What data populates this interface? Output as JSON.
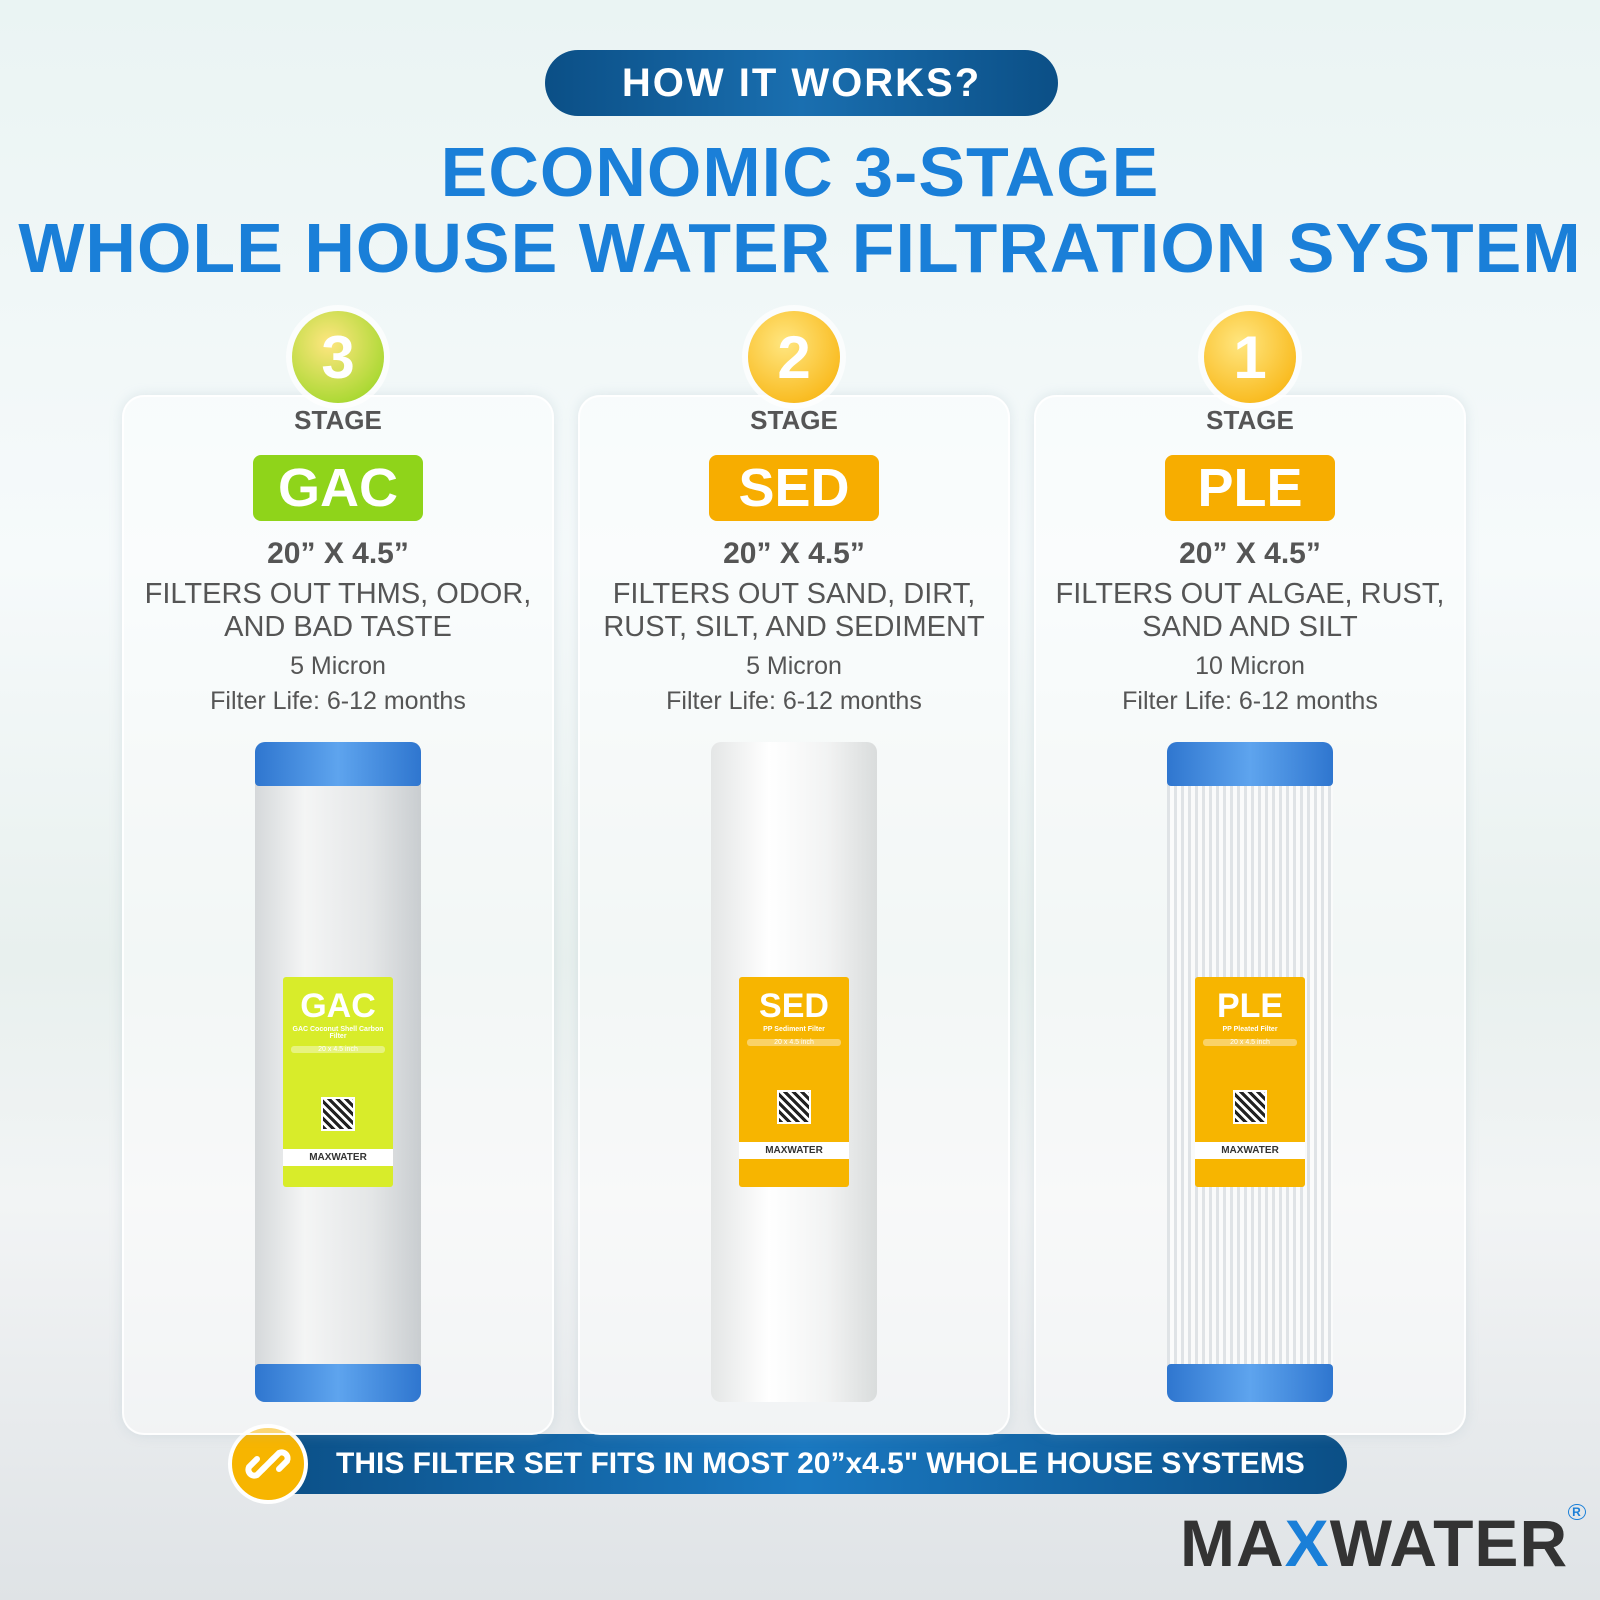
{
  "header": {
    "badge": "HOW IT WORKS?",
    "title_lines": [
      "ECONOMIC 3-STAGE",
      "WHOLE HOUSE WATER FILTRATION SYSTEM"
    ]
  },
  "stages": [
    {
      "number": "3",
      "label": "STAGE",
      "code": "GAC",
      "size": "20” X 4.5”",
      "description": [
        "FILTERS OUT THMS, ODOR,",
        "AND BAD TASTE"
      ],
      "micron": "5 Micron",
      "life": "Filter Life: 6-12 months",
      "product": {
        "name": "GAC",
        "subtitle": "GAC Coconut Shell Carbon Filter",
        "dims": "20 x 4.5 inch",
        "brand": "MAXWATER"
      }
    },
    {
      "number": "2",
      "label": "STAGE",
      "code": "SED",
      "size": "20” X 4.5”",
      "description": [
        "FILTERS OUT SAND, DIRT,",
        "RUST, SILT, AND SEDIMENT"
      ],
      "micron": "5 Micron",
      "life": "Filter Life: 6-12 months",
      "product": {
        "name": "SED",
        "subtitle": "PP Sediment Filter",
        "dims": "20 x 4.5 inch",
        "brand": "MAXWATER"
      }
    },
    {
      "number": "1",
      "label": "STAGE",
      "code": "PLE",
      "size": "20” X 4.5”",
      "description": [
        "FILTERS OUT ALGAE, RUST,",
        "SAND AND SILT"
      ],
      "micron": "10 Micron",
      "life": "Filter Life: 6-12 months",
      "product": {
        "name": "PLE",
        "subtitle": "PP Pleated Filter",
        "dims": "20 x 4.5 inch",
        "brand": "MAXWATER"
      }
    }
  ],
  "footer": {
    "banner": "THIS FILTER SET FITS IN MOST 20”x4.5\" WHOLE HOUSE SYSTEMS",
    "logo": [
      "MA",
      "X",
      "WATER"
    ],
    "registered": "R"
  }
}
